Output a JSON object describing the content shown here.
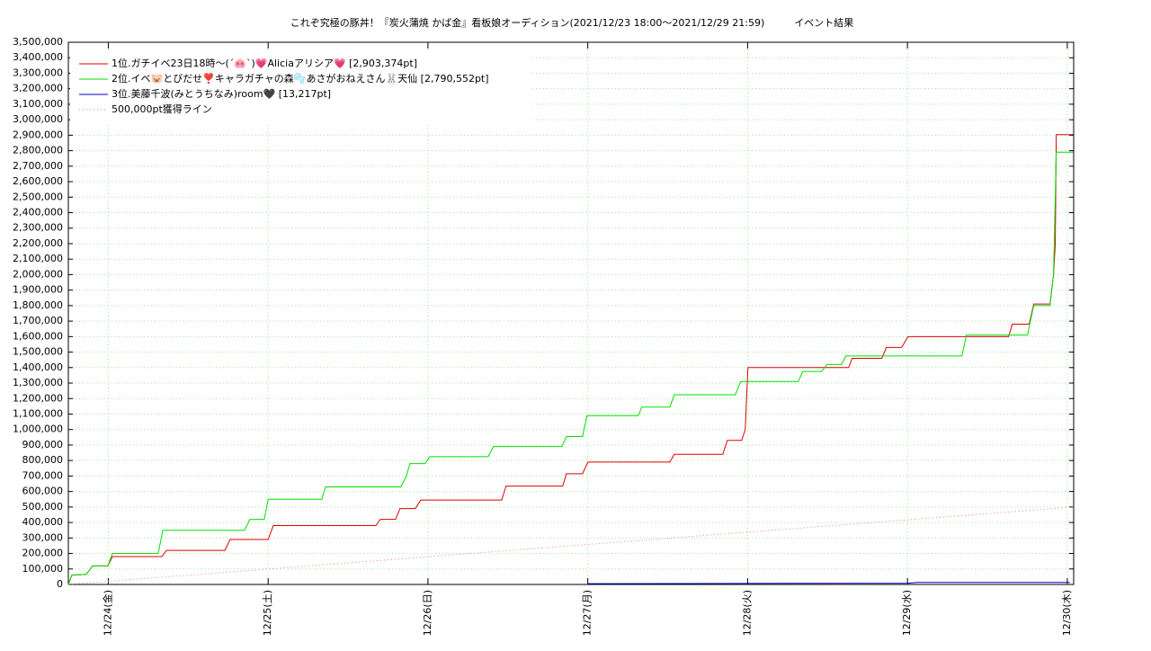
{
  "chart_data": {
    "type": "line",
    "title": "これぞ究極の豚丼！『炭火蒲焼 かば金』看板娘オーディション(2021/12/23 18:00〜2021/12/29 21:59)　　　イベント結果",
    "xlim": [
      23.75,
      30.04
    ],
    "xticks": [
      {
        "value": 24,
        "label": "12/24(金)"
      },
      {
        "value": 25,
        "label": "12/25(土)"
      },
      {
        "value": 26,
        "label": "12/26(日)"
      },
      {
        "value": 27,
        "label": "12/27(月)"
      },
      {
        "value": 28,
        "label": "12/28(火)"
      },
      {
        "value": 29,
        "label": "12/29(水)"
      },
      {
        "value": 30,
        "label": "12/30(木)"
      }
    ],
    "ylim": [
      0,
      3500000
    ],
    "yticks": [
      0,
      {
        "value": 100000,
        "label": "100,000"
      },
      {
        "value": 200000,
        "label": "200,000"
      },
      {
        "value": 300000,
        "label": "300,000"
      },
      {
        "value": 400000,
        "label": "400,000"
      },
      {
        "value": 500000,
        "label": "500,000"
      },
      {
        "value": 600000,
        "label": "600,000"
      },
      {
        "value": 700000,
        "label": "700,000"
      },
      {
        "value": 800000,
        "label": "800,000"
      },
      {
        "value": 900000,
        "label": "900,000"
      },
      {
        "value": 1000000,
        "label": "1,000,000"
      },
      {
        "value": 1100000,
        "label": "1,100,000"
      },
      {
        "value": 1200000,
        "label": "1,200,000"
      },
      {
        "value": 1300000,
        "label": "1,300,000"
      },
      {
        "value": 1400000,
        "label": "1,400,000"
      },
      {
        "value": 1500000,
        "label": "1,500,000"
      },
      {
        "value": 1600000,
        "label": "1,600,000"
      },
      {
        "value": 1700000,
        "label": "1,700,000"
      },
      {
        "value": 1800000,
        "label": "1,800,000"
      },
      {
        "value": 1900000,
        "label": "1,900,000"
      },
      {
        "value": 2000000,
        "label": "2,000,000"
      },
      {
        "value": 2100000,
        "label": "2,100,000"
      },
      {
        "value": 2200000,
        "label": "2,200,000"
      },
      {
        "value": 2300000,
        "label": "2,300,000"
      },
      {
        "value": 2400000,
        "label": "2,400,000"
      },
      {
        "value": 2500000,
        "label": "2,500,000"
      },
      {
        "value": 2600000,
        "label": "2,600,000"
      },
      {
        "value": 2700000,
        "label": "2,700,000"
      },
      {
        "value": 2800000,
        "label": "2,800,000"
      },
      {
        "value": 2900000,
        "label": "2,900,000"
      },
      {
        "value": 3000000,
        "label": "3,000,000"
      },
      {
        "value": 3100000,
        "label": "3,100,000"
      },
      {
        "value": 3200000,
        "label": "3,200,000"
      },
      {
        "value": 3300000,
        "label": "3,300,000"
      },
      {
        "value": 3400000,
        "label": "3,400,000"
      },
      {
        "value": 3500000,
        "label": "3,500,000"
      }
    ],
    "grid": true,
    "legend": "upper-left",
    "series": [
      {
        "name": "1位.ガチイベ23日18時〜(ˊ🐽ˋ)💗Aliciaアリシア💗 [2,903,374pt]",
        "color": "#e00000",
        "style": "solid",
        "x": [
          23.75,
          23.772,
          23.862,
          23.902,
          23.997,
          24.026,
          24.335,
          24.363,
          24.729,
          24.762,
          25.0,
          25.032,
          25.674,
          25.702,
          25.797,
          25.825,
          25.921,
          25.955,
          26.461,
          26.489,
          26.843,
          26.866,
          26.967,
          27.001,
          27.513,
          27.541,
          27.845,
          27.873,
          27.963,
          27.985,
          28.002,
          28.632,
          28.654,
          28.84,
          28.868,
          28.964,
          29.003,
          29.633,
          29.656,
          29.762,
          29.79,
          29.892,
          29.914,
          29.925,
          29.931,
          30.038
        ],
        "values": [
          0,
          60000,
          65000,
          120000,
          120000,
          180000,
          180000,
          220000,
          220000,
          290000,
          290000,
          380000,
          380000,
          420000,
          420000,
          490000,
          490000,
          545000,
          545000,
          635000,
          635000,
          715000,
          715000,
          790000,
          790000,
          840000,
          840000,
          930000,
          930000,
          1000000,
          1400000,
          1400000,
          1460000,
          1460000,
          1530000,
          1530000,
          1600000,
          1600000,
          1680000,
          1680000,
          1810000,
          1810000,
          2000000,
          2200000,
          2903374,
          2903374
        ]
      },
      {
        "name": "2位.イベ🐷とびだせ❣️キャラガチャの森🫧あさがおねえさん🐰天仙 [2,790,552pt]",
        "color": "#00e000",
        "style": "solid",
        "x": [
          23.75,
          23.772,
          23.862,
          23.902,
          23.997,
          24.026,
          24.312,
          24.341,
          24.852,
          24.886,
          24.976,
          25.0,
          25.336,
          25.359,
          25.831,
          25.865,
          25.887,
          25.983,
          26.011,
          26.377,
          26.41,
          26.838,
          26.866,
          26.967,
          26.995,
          27.316,
          27.338,
          27.513,
          27.541,
          27.923,
          27.957,
          28.317,
          28.345,
          28.463,
          28.497,
          28.587,
          28.615,
          29.341,
          29.369,
          29.751,
          29.79,
          29.892,
          29.914,
          29.931,
          30.038
        ],
        "values": [
          0,
          60000,
          65000,
          120000,
          120000,
          200000,
          200000,
          350000,
          350000,
          420000,
          420000,
          550000,
          550000,
          630000,
          630000,
          700000,
          780000,
          780000,
          825000,
          825000,
          890000,
          890000,
          955000,
          955000,
          1090000,
          1090000,
          1145000,
          1145000,
          1225000,
          1225000,
          1310000,
          1310000,
          1375000,
          1375000,
          1420000,
          1420000,
          1475000,
          1475000,
          1610000,
          1610000,
          1800000,
          1800000,
          2000000,
          2790552,
          2790552
        ]
      },
      {
        "name": "3位.美藤千波(みとうちなみ)room🖤 [13,217pt]",
        "color": "#0000c0",
        "style": "solid",
        "x": [
          27.001,
          29.003,
          29.06,
          30.016
        ],
        "values": [
          5000,
          8000,
          13000,
          13217
        ]
      },
      {
        "name": "500,000pt獲得ライン",
        "color": "#e08080",
        "style": "dotted",
        "x": [
          23.75,
          30.04
        ],
        "values": [
          0,
          500000
        ]
      }
    ]
  }
}
